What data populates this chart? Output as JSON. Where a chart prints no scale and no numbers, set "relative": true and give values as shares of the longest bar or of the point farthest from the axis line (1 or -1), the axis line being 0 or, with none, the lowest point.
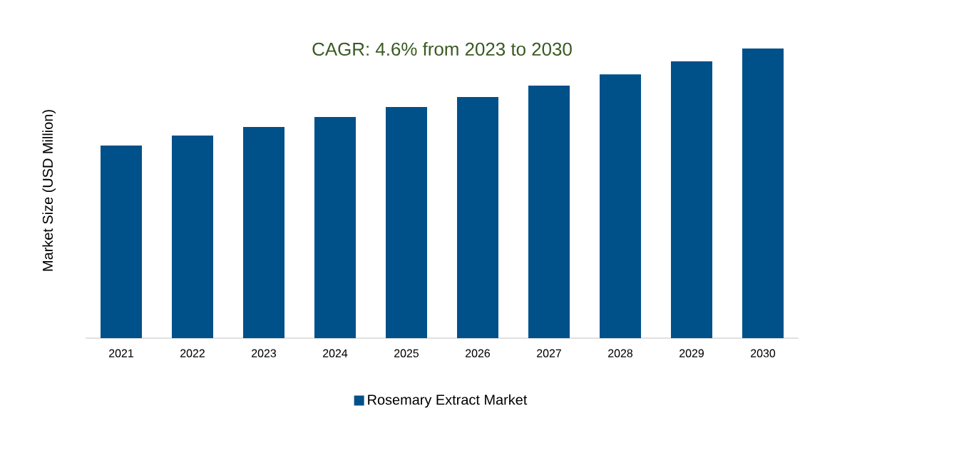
{
  "chart_data": {
    "type": "bar",
    "relative": true,
    "title": "CAGR: 4.6% from 2023 to 2030",
    "ylabel": "Market Size (USD Million)",
    "categories": [
      "2021",
      "2022",
      "2023",
      "2024",
      "2025",
      "2026",
      "2027",
      "2028",
      "2029",
      "2030"
    ],
    "series": [
      {
        "name": "Rosemary Extract Market",
        "color": "#00508a",
        "values": [
          0.665,
          0.7,
          0.729,
          0.764,
          0.798,
          0.833,
          0.872,
          0.911,
          0.956,
          1
        ]
      }
    ],
    "legend": "bottom"
  }
}
